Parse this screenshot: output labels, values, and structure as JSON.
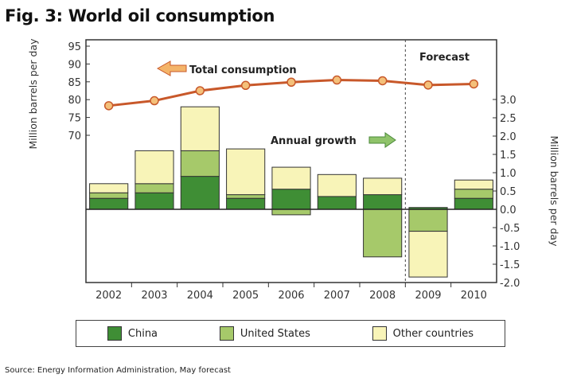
{
  "figure": {
    "title": "Fig. 3: World oil consumption",
    "source": "Source: Energy Information Administration, May forecast"
  },
  "chart_data": {
    "type": "bar",
    "categories": [
      "2002",
      "2003",
      "2004",
      "2005",
      "2006",
      "2007",
      "2008",
      "2009",
      "2010"
    ],
    "stacked": true,
    "series": [
      {
        "name": "China",
        "color": "#3f8e35",
        "values": [
          0.3,
          0.45,
          0.9,
          0.3,
          0.55,
          0.35,
          0.4,
          0.05,
          0.3
        ]
      },
      {
        "name": "United States",
        "color": "#a6c96a",
        "values": [
          0.15,
          0.25,
          0.7,
          0.1,
          -0.15,
          0.0,
          -1.3,
          -0.6,
          0.25
        ]
      },
      {
        "name": "Other countries",
        "color": "#f8f4b8",
        "values": [
          0.25,
          0.9,
          1.2,
          1.25,
          0.6,
          0.6,
          0.45,
          -1.25,
          0.25
        ]
      }
    ],
    "line": {
      "name": "Total consumption",
      "values": [
        78.3,
        79.7,
        82.5,
        84.0,
        84.9,
        85.5,
        85.3,
        84.1,
        84.4
      ],
      "color": "#c8582a",
      "marker_color": "#f4c07a"
    },
    "y_left": {
      "label": "Million barrels per day",
      "ticks": [
        "95",
        "90",
        "85",
        "80",
        "75",
        "70"
      ],
      "range": [
        70,
        95
      ]
    },
    "y_right": {
      "label": "Million barrels per day",
      "ticks": [
        "3.0",
        "2.5",
        "2.0",
        "1.5",
        "1.0",
        "0.5",
        "0.0",
        "-0.5",
        "-1.0",
        "-1.5",
        "-2.0"
      ],
      "range": [
        -2.0,
        3.0
      ]
    },
    "annotations": {
      "total": "Total consumption",
      "growth": "Annual growth",
      "forecast": "Forecast"
    },
    "forecast_start": "2009",
    "legend_position": "bottom"
  }
}
